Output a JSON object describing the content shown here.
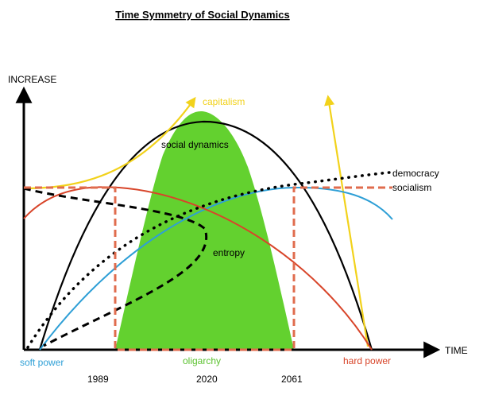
{
  "title": "Time Symmetry of Social Dynamics",
  "axes": {
    "y_label": "INCREASE",
    "x_label": "TIME"
  },
  "labels": {
    "capitalism": "capitalism",
    "social_dynamics": "social dynamics",
    "democracy": "democracy",
    "socialism": "socialism",
    "entropy": "entropy",
    "soft_power": "soft power",
    "oligarchy": "oligarchy",
    "hard_power": "hard power"
  },
  "years": [
    "1989",
    "2020",
    "2061"
  ],
  "colors": {
    "capitalism": "#f2d21b",
    "soft_power": "#2e9fd6",
    "hard_power": "#d8452a",
    "oligarchy": "#5cc230",
    "oligarchy_fill": "#63d12f",
    "socialism": "#e06c4e",
    "black": "#000000"
  }
}
